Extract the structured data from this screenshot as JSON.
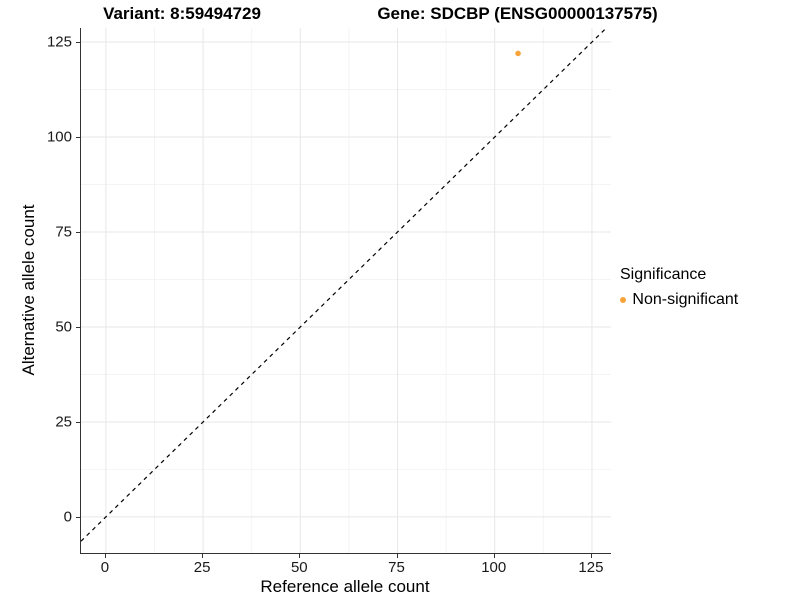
{
  "chart_data": {
    "type": "scatter",
    "title_left": "Variant: 8:59494729",
    "title_right": "Gene: SDCBP (ENSG00000137575)",
    "xlabel": "Reference allele count",
    "ylabel": "Alternative allele count",
    "xticks": [
      0,
      25,
      50,
      75,
      100,
      125
    ],
    "yticks": [
      0,
      25,
      50,
      75,
      100,
      125
    ],
    "minor_xticks": [
      12.5,
      37.5,
      62.5,
      87.5,
      112.5
    ],
    "minor_yticks": [
      12.5,
      37.5,
      62.5,
      87.5,
      112.5
    ],
    "xlim": [
      -6.4,
      129.9
    ],
    "ylim": [
      -9.5,
      128.7
    ],
    "grid": "major+minor",
    "reference_line": {
      "type": "identity",
      "style": "dashed",
      "color": "#000000"
    },
    "series": [
      {
        "name": "Non-significant",
        "color": "#F9A43B",
        "points": [
          {
            "x": 106,
            "y": 122
          }
        ]
      }
    ],
    "legend": {
      "title": "Significance",
      "position": "right",
      "entries": [
        {
          "label": "Non-significant",
          "color": "#F9A43B"
        }
      ]
    },
    "colors": {
      "grid_major": "#E7E7E7",
      "grid_minor": "#F4F4F4",
      "axis_line": "#333333",
      "tick_label": "#1a1a1a"
    },
    "point_radius": 2.8,
    "legend_dot_radius": 3.2
  }
}
